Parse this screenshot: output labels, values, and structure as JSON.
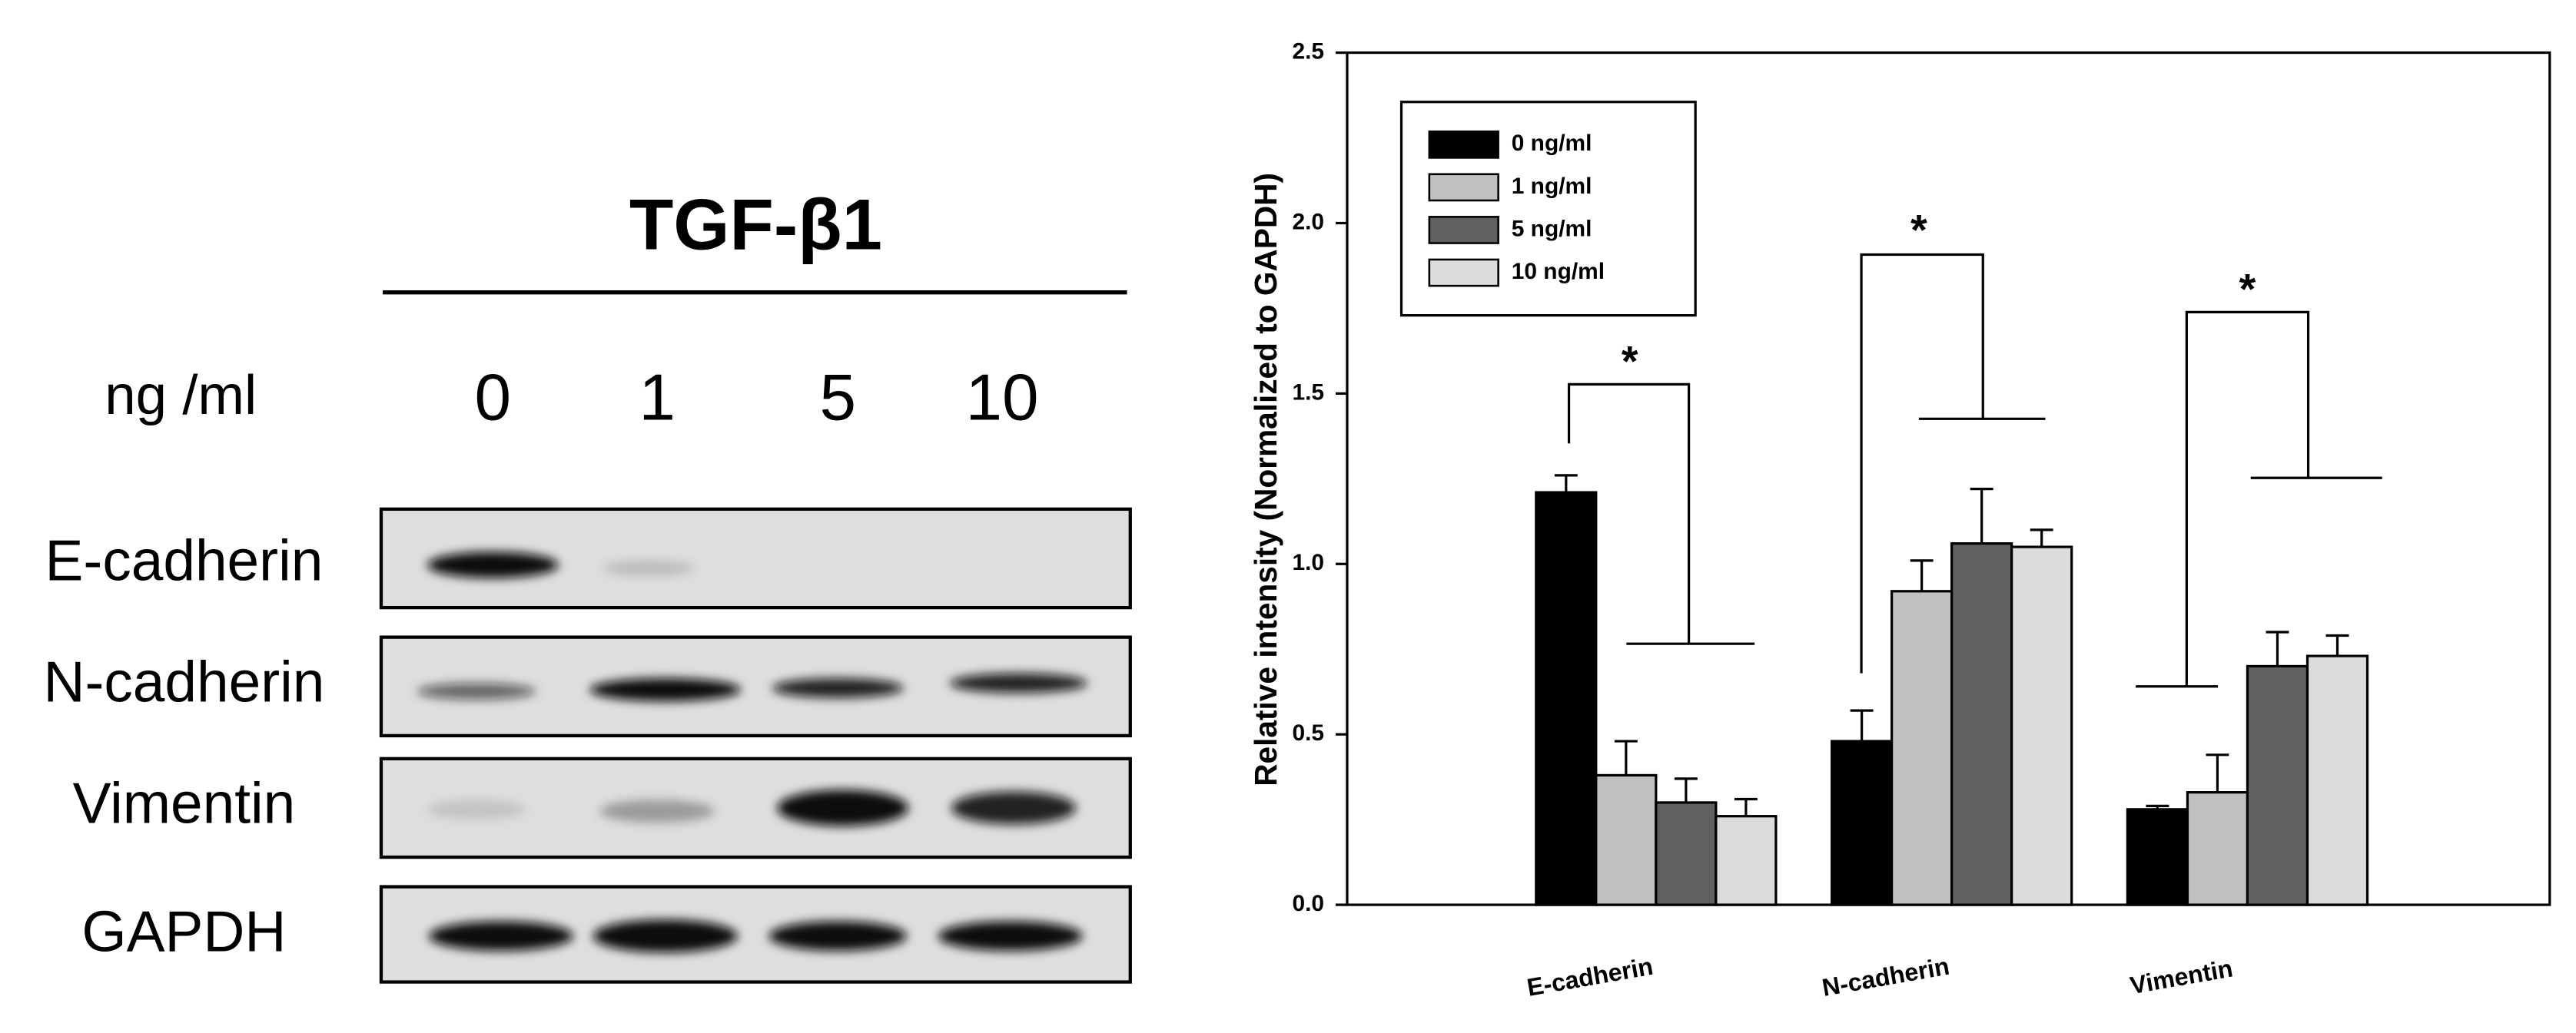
{
  "blot": {
    "title": "TGF-β1",
    "unit": "ng /ml",
    "lanes": [
      "0",
      "1",
      "5",
      "10"
    ],
    "rows": [
      "E-cadherin",
      "N-cadherin",
      "Vimentin",
      "GAPDH"
    ]
  },
  "chart_data": {
    "type": "bar",
    "y_label": "Relative intensity (Normalized to GAPDH)",
    "categories": [
      "E-cadherin",
      "N-cadherin",
      "Vimentin"
    ],
    "series": [
      {
        "name": "0 ng/ml",
        "color": "#000000",
        "values": [
          1.21,
          0.48,
          0.28
        ],
        "errors": [
          0.05,
          0.09,
          0.01
        ]
      },
      {
        "name": "1 ng/ml",
        "color": "#c0c0c0",
        "values": [
          0.38,
          0.92,
          0.33
        ],
        "errors": [
          0.1,
          0.09,
          0.11
        ]
      },
      {
        "name": "5 ng/ml",
        "color": "#606060",
        "values": [
          0.3,
          1.06,
          0.7
        ],
        "errors": [
          0.07,
          0.16,
          0.1
        ]
      },
      {
        "name": "10 ng/ml",
        "color": "#dcdcdc",
        "values": [
          0.26,
          1.05,
          0.73
        ],
        "errors": [
          0.05,
          0.05,
          0.06
        ]
      }
    ],
    "ylim": [
      0,
      2.5
    ],
    "yticks": [
      {
        "value": 0,
        "label": "0.0"
      },
      0.5,
      {
        "value": 1,
        "label": "1.0"
      },
      1.5,
      {
        "value": 2,
        "label": "2.0"
      },
      2.5
    ],
    "annotations": [
      "*",
      "*",
      "*"
    ],
    "legend": "upper left"
  }
}
